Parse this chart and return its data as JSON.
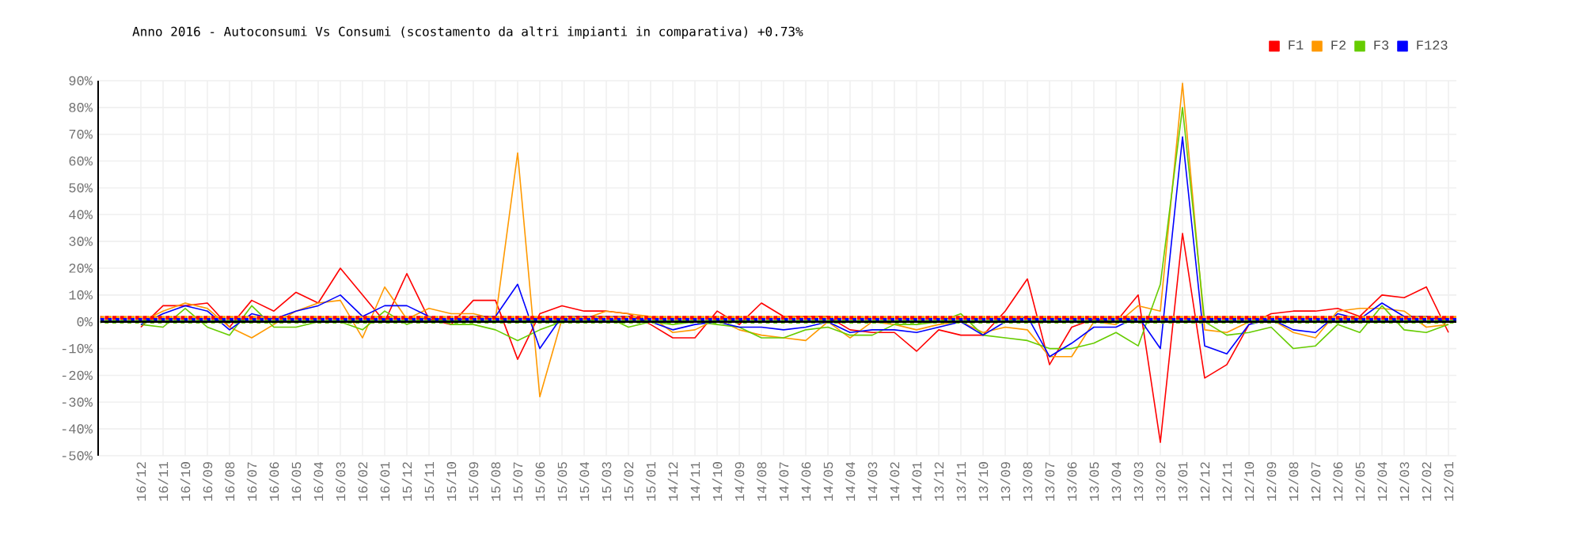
{
  "chart_data": {
    "type": "line",
    "title": "Anno 2016 - Autoconsumi Vs Consumi (scostamento da altri impianti in comparativa) +0.73%",
    "categories": [
      "16/12",
      "16/11",
      "16/10",
      "16/09",
      "16/08",
      "16/07",
      "16/06",
      "16/05",
      "16/04",
      "16/03",
      "16/02",
      "16/01",
      "15/12",
      "15/11",
      "15/10",
      "15/09",
      "15/08",
      "15/07",
      "15/06",
      "15/05",
      "15/04",
      "15/03",
      "15/02",
      "15/01",
      "14/12",
      "14/11",
      "14/10",
      "14/09",
      "14/08",
      "14/07",
      "14/06",
      "14/05",
      "14/04",
      "14/03",
      "14/02",
      "14/01",
      "13/12",
      "13/11",
      "13/10",
      "13/09",
      "13/08",
      "13/07",
      "13/06",
      "13/05",
      "13/04",
      "13/03",
      "13/02",
      "13/01",
      "12/12",
      "12/11",
      "12/10",
      "12/09",
      "12/08",
      "12/07",
      "12/06",
      "12/05",
      "12/04",
      "12/03",
      "12/02",
      "12/01"
    ],
    "series": [
      {
        "name": "F1",
        "color": "#ff0000",
        "values": [
          -2,
          6,
          6,
          7,
          -2,
          8,
          4,
          11,
          7,
          20,
          10,
          0,
          18,
          1,
          -1,
          8,
          8,
          -14,
          3,
          6,
          4,
          4,
          3,
          -1,
          -6,
          -6,
          4,
          -1,
          7,
          2,
          2,
          2,
          -3,
          -4,
          -4,
          -11,
          -3,
          -5,
          -5,
          4,
          16,
          -16,
          -2,
          1,
          0,
          10,
          -45,
          33,
          -21,
          -16,
          -1,
          3,
          4,
          4,
          5,
          2,
          10,
          9,
          13,
          -4
        ]
      },
      {
        "name": "F2",
        "color": "#ff9900",
        "values": [
          0,
          4,
          7,
          5,
          -2,
          -6,
          -1,
          4,
          7,
          8,
          -6,
          13,
          1,
          5,
          3,
          3,
          1,
          63,
          -28,
          1,
          1,
          4,
          3,
          2,
          -4,
          -3,
          1,
          -3,
          -5,
          -6,
          -7,
          0,
          -6,
          0,
          -1,
          -3,
          -1,
          0,
          -4,
          -2,
          -3,
          -13,
          -13,
          0,
          -1,
          6,
          4,
          89,
          -3,
          -4,
          0,
          1,
          -4,
          -6,
          4,
          5,
          5,
          4,
          -2,
          -1
        ]
      },
      {
        "name": "F3",
        "color": "#66cc00",
        "values": [
          -1,
          -2,
          5,
          -2,
          -5,
          6,
          -2,
          -2,
          0,
          0,
          -3,
          4,
          -1,
          2,
          -1,
          -1,
          -3,
          -7,
          -3,
          0,
          0,
          2,
          -2,
          0,
          -1,
          0,
          -1,
          -2,
          -6,
          -6,
          -3,
          -2,
          -5,
          -5,
          -1,
          -1,
          0,
          3,
          -5,
          -6,
          -7,
          -10,
          -10,
          -8,
          -4,
          -9,
          14,
          80,
          0,
          -5,
          -4,
          -2,
          -10,
          -9,
          -1,
          -4,
          6,
          -3,
          -4,
          -1
        ]
      },
      {
        "name": "F123",
        "color": "#0000ff",
        "values": [
          -1,
          3,
          6,
          4,
          -3,
          3,
          1,
          4,
          6,
          10,
          2,
          6,
          6,
          2,
          0,
          2,
          2,
          14,
          -10,
          2,
          2,
          2,
          2,
          0,
          -3,
          -1,
          0,
          -2,
          -2,
          -3,
          -2,
          0,
          -4,
          -3,
          -3,
          -4,
          -2,
          0,
          -5,
          0,
          2,
          -13,
          -8,
          -2,
          -2,
          2,
          -10,
          69,
          -9,
          -12,
          -1,
          1,
          -3,
          -4,
          3,
          1,
          7,
          2,
          2,
          0
        ]
      }
    ],
    "ylim": [
      -50,
      90
    ],
    "yticks": [
      {
        "value": -50,
        "label": "-50%"
      },
      {
        "value": -40,
        "label": "-40%"
      },
      {
        "value": -30,
        "label": "-30%"
      },
      {
        "value": -20,
        "label": "-20%"
      },
      {
        "value": -10,
        "label": "-10%"
      },
      {
        "value": 0,
        "label": "0%"
      },
      {
        "value": 10,
        "label": "10%"
      },
      {
        "value": 20,
        "label": "20%"
      },
      {
        "value": 30,
        "label": "30%"
      },
      {
        "value": 40,
        "label": "40%"
      },
      {
        "value": 50,
        "label": "50%"
      },
      {
        "value": 60,
        "label": "60%"
      },
      {
        "value": 70,
        "label": "70%"
      },
      {
        "value": 80,
        "label": "80%"
      },
      {
        "value": 90,
        "label": "90%"
      }
    ],
    "ref_lines": [
      {
        "axis": "y",
        "value": 1.5,
        "color": "#ff9900",
        "line_style": "dotted"
      },
      {
        "axis": "y",
        "value": 1.5,
        "color": "#ff0000",
        "line_style": "dotted"
      },
      {
        "axis": "y",
        "value": 0.7,
        "color": "#0000ff",
        "line_style": "dotted"
      },
      {
        "axis": "y",
        "value": 0,
        "color": "#66cc00",
        "line_style": "dotted"
      },
      {
        "axis": "y",
        "value": 0,
        "color": "#000000",
        "line_style": "solid"
      }
    ],
    "grid": true,
    "legend": "top right",
    "line_style": "solid"
  }
}
